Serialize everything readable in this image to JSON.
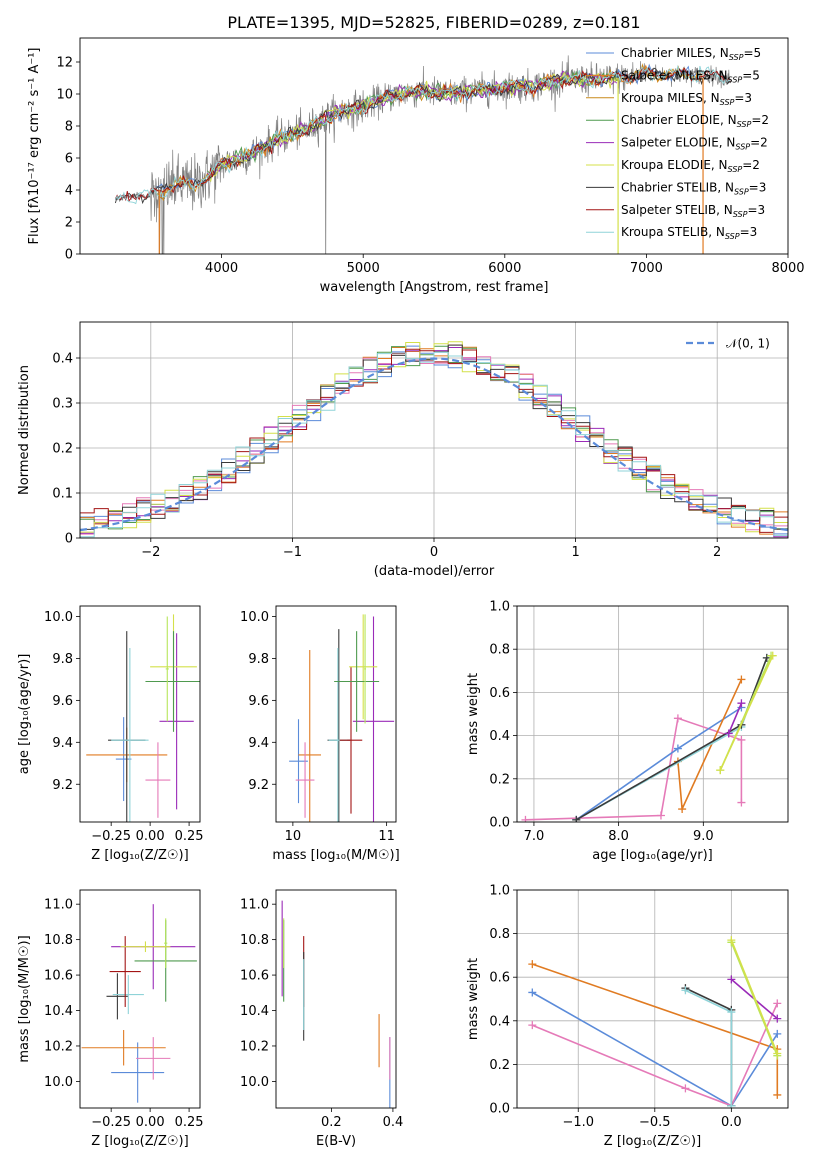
{
  "figure": {
    "title": "PLATE=1395, MJD=52825, FIBERID=0289, z=0.181"
  },
  "colors": {
    "chabrier_miles": "#5b8bd9",
    "salpeter_miles": "#e07b22",
    "kroupa_miles": "#c98a1a",
    "chabrier_elodie": "#4f9a4f",
    "salpeter_elodie": "#9a2bb8",
    "kroupa_elodie": "#d4e04a",
    "chabrier_stelib": "#3a3a3a",
    "salpeter_stelib": "#a31515",
    "kroupa_stelib": "#8fd3d8",
    "pink": "#e57ab8",
    "lime": "#b7e65a",
    "data": "#808080",
    "normal": "#5b8bd9",
    "grid": "#b0b0b0"
  },
  "chart_data": [
    {
      "id": "spectrum",
      "type": "line",
      "xlabel": "wavelength [Angstrom, rest frame]",
      "ylabel": "Flux [fλ10⁻¹⁷ erg cm⁻² s⁻¹ A⁻¹]",
      "xlim": [
        3000,
        8000
      ],
      "ylim": [
        0,
        13.5
      ],
      "xticks": [
        4000,
        5000,
        6000,
        7000,
        8000
      ],
      "yticks": [
        0,
        2,
        4,
        6,
        8,
        10,
        12
      ],
      "legend_position": "top-right",
      "legend": [
        {
          "label": "Chabrier MILES, N",
          "sub": "SSP",
          "suffix": "=5",
          "color_key": "chabrier_miles"
        },
        {
          "label": "Salpeter MILES, N",
          "sub": "SSP",
          "suffix": "=5",
          "color_key": "salpeter_miles"
        },
        {
          "label": "Kroupa MILES, N",
          "sub": "SSP",
          "suffix": "=3",
          "color_key": "kroupa_miles"
        },
        {
          "label": "Chabrier ELODIE, N",
          "sub": "SSP",
          "suffix": "=2",
          "color_key": "chabrier_elodie"
        },
        {
          "label": "Salpeter ELODIE, N",
          "sub": "SSP",
          "suffix": "=2",
          "color_key": "salpeter_elodie"
        },
        {
          "label": "Kroupa ELODIE, N",
          "sub": "SSP",
          "suffix": "=2",
          "color_key": "kroupa_elodie"
        },
        {
          "label": "Chabrier STELIB, N",
          "sub": "SSP",
          "suffix": "=3",
          "color_key": "chabrier_stelib"
        },
        {
          "label": "Salpeter STELIB, N",
          "sub": "SSP",
          "suffix": "=3",
          "color_key": "salpeter_stelib"
        },
        {
          "label": "Kroupa STELIB, N",
          "sub": "SSP",
          "suffix": "=3",
          "color_key": "kroupa_stelib"
        }
      ],
      "continuum": {
        "wavelength": [
          3250,
          3400,
          3500,
          3600,
          3700,
          3800,
          3900,
          4000,
          4200,
          4400,
          4600,
          4800,
          5000,
          5200,
          5400,
          5600,
          5800,
          6000,
          6200,
          6400,
          6600,
          6800,
          7000,
          7200,
          7400,
          7600
        ],
        "flux": [
          3.4,
          3.7,
          3.6,
          4.1,
          4.4,
          4.3,
          4.8,
          5.6,
          6.2,
          7.2,
          7.8,
          8.8,
          9.2,
          9.9,
          10.2,
          10.0,
          10.2,
          10.4,
          10.5,
          10.9,
          10.9,
          11.0,
          11.3,
          11.2,
          11.2,
          11.0
        ]
      }
    },
    {
      "id": "residuals",
      "type": "histogram",
      "xlabel": "(data-model)/error",
      "ylabel": "Normed distribution",
      "xlim": [
        -2.5,
        2.5
      ],
      "ylim": [
        0,
        0.48
      ],
      "xticks": [
        -2,
        -1,
        0,
        1,
        2
      ],
      "yticks": [
        0.0,
        0.1,
        0.2,
        0.3,
        0.4
      ],
      "legend_position": "top-right",
      "legend_label": "𝒩(0, 1)"
    },
    {
      "id": "age_vs_Z",
      "type": "errorbar",
      "xlabel": "Z [log₁₀(Z/Z☉)]",
      "ylabel": "age  [log₁₀(age/yr)]",
      "xlim": [
        -0.45,
        0.32
      ],
      "ylim": [
        9.02,
        10.05
      ],
      "xticks": [
        -0.25,
        0.0,
        0.25
      ],
      "yticks": [
        9.2,
        9.4,
        9.6,
        9.8,
        10.0
      ],
      "points": [
        {
          "x": -0.17,
          "xerr": 0.05,
          "y": 9.32,
          "yerr": 0.2,
          "color_key": "chabrier_miles"
        },
        {
          "x": -0.15,
          "xerr": 0.26,
          "y": 9.34,
          "yerr": 0.13,
          "color_key": "salpeter_miles"
        },
        {
          "x": 0.05,
          "xerr": 0.08,
          "y": 9.22,
          "yerr": 0.18,
          "color_key": "pink"
        },
        {
          "x": -0.15,
          "xerr": 0.12,
          "y": 9.41,
          "yerr": 0.52,
          "color_key": "chabrier_stelib"
        },
        {
          "x": -0.13,
          "xerr": 0.12,
          "y": 9.41,
          "yerr": 0.44,
          "color_key": "kroupa_stelib"
        },
        {
          "x": 0.17,
          "xerr": 0.11,
          "y": 9.5,
          "yerr": 0.42,
          "color_key": "salpeter_elodie"
        },
        {
          "x": 0.15,
          "xerr": 0.15,
          "y": 9.76,
          "yerr": 0.25,
          "color_key": "kroupa_elodie"
        },
        {
          "x": 0.15,
          "xerr": 0.18,
          "y": 9.69,
          "yerr": 0.24,
          "color_key": "chabrier_elodie"
        },
        {
          "x": 0.11,
          "xerr": 0.01,
          "y": 9.75,
          "yerr": 0.25,
          "color_key": "lime"
        }
      ]
    },
    {
      "id": "age_vs_mass",
      "type": "errorbar",
      "xlabel": "mass [log₁₀(M/M☉)]",
      "ylabel": "",
      "xlim": [
        9.82,
        11.1
      ],
      "ylim": [
        9.02,
        10.05
      ],
      "xticks": [
        10,
        11
      ],
      "yticks": [
        9.2,
        9.4,
        9.6,
        9.8,
        10.0
      ],
      "points": [
        {
          "x": 10.06,
          "xerr": 0.1,
          "y": 9.31,
          "yerr": 0.2,
          "color_key": "chabrier_miles"
        },
        {
          "x": 10.18,
          "xerr": 0.12,
          "y": 9.34,
          "yerr": 0.5,
          "color_key": "salpeter_miles"
        },
        {
          "x": 10.13,
          "xerr": 0.1,
          "y": 9.22,
          "yerr": 0.18,
          "color_key": "pink"
        },
        {
          "x": 10.49,
          "xerr": 0.12,
          "y": 9.41,
          "yerr": 0.53,
          "color_key": "chabrier_stelib"
        },
        {
          "x": 10.48,
          "xerr": 0.1,
          "y": 9.41,
          "yerr": 0.44,
          "color_key": "kroupa_stelib"
        },
        {
          "x": 10.62,
          "xerr": 0.12,
          "y": 9.41,
          "yerr": 0.35,
          "color_key": "salpeter_stelib"
        },
        {
          "x": 10.86,
          "xerr": 0.22,
          "y": 9.5,
          "yerr": 0.5,
          "color_key": "salpeter_elodie"
        },
        {
          "x": 10.75,
          "xerr": 0.15,
          "y": 9.76,
          "yerr": 0.25,
          "color_key": "kroupa_elodie"
        },
        {
          "x": 10.68,
          "xerr": 0.24,
          "y": 9.69,
          "yerr": 0.24,
          "color_key": "chabrier_elodie"
        },
        {
          "x": 10.77,
          "xerr": 0.01,
          "y": 9.75,
          "yerr": 0.26,
          "color_key": "lime"
        }
      ]
    },
    {
      "id": "weight_vs_age",
      "type": "line",
      "xlabel": "age  [log₁₀(age/yr)]",
      "ylabel": "mass weight",
      "xlim": [
        6.8,
        10.0
      ],
      "ylim": [
        0.0,
        1.0
      ],
      "xticks": [
        7,
        8,
        9
      ],
      "yticks": [
        0.0,
        0.2,
        0.4,
        0.6,
        0.8,
        1.0
      ],
      "series": [
        {
          "color_key": "pink",
          "points": [
            [
              6.9,
              0.01
            ],
            [
              8.5,
              0.03
            ],
            [
              8.7,
              0.48
            ],
            [
              9.45,
              0.38
            ],
            [
              9.45,
              0.09
            ]
          ]
        },
        {
          "color_key": "chabrier_miles",
          "points": [
            [
              7.5,
              0.01
            ],
            [
              8.7,
              0.34
            ],
            [
              9.45,
              0.53
            ]
          ]
        },
        {
          "color_key": "salpeter_miles",
          "points": [
            [
              8.7,
              0.28
            ],
            [
              8.75,
              0.06
            ],
            [
              9.45,
              0.66
            ]
          ]
        },
        {
          "color_key": "kroupa_stelib",
          "points": [
            [
              7.5,
              0.01
            ],
            [
              9.45,
              0.44
            ],
            [
              9.75,
              0.76
            ]
          ]
        },
        {
          "color_key": "chabrier_stelib",
          "points": [
            [
              7.5,
              0.01
            ],
            [
              9.45,
              0.45
            ],
            [
              9.75,
              0.76
            ]
          ]
        },
        {
          "color_key": "salpeter_elodie",
          "points": [
            [
              9.3,
              0.41
            ],
            [
              9.45,
              0.55
            ]
          ]
        },
        {
          "color_key": "lime",
          "points": [
            [
              9.2,
              0.24
            ],
            [
              9.8,
              0.77
            ]
          ]
        },
        {
          "color_key": "kroupa_elodie",
          "points": [
            [
              9.2,
              0.24
            ],
            [
              9.82,
              0.77
            ]
          ]
        }
      ]
    },
    {
      "id": "mass_vs_Z",
      "type": "errorbar",
      "xlabel": "Z [log₁₀(Z/Z☉)]",
      "ylabel": "mass [log₁₀(M/M☉)]",
      "xlim": [
        -0.45,
        0.32
      ],
      "ylim": [
        9.85,
        11.08
      ],
      "xticks": [
        -0.25,
        0.0,
        0.25
      ],
      "yticks": [
        10.0,
        10.2,
        10.4,
        10.6,
        10.8,
        11.0
      ],
      "points": [
        {
          "x": -0.08,
          "xerr": 0.17,
          "y": 10.05,
          "yerr": 0.17,
          "color_key": "chabrier_miles"
        },
        {
          "x": -0.17,
          "xerr": 0.27,
          "y": 10.19,
          "yerr": 0.1,
          "color_key": "salpeter_miles"
        },
        {
          "x": 0.02,
          "xerr": 0.11,
          "y": 10.13,
          "yerr": 0.12,
          "color_key": "pink"
        },
        {
          "x": -0.21,
          "xerr": 0.07,
          "y": 10.48,
          "yerr": 0.13,
          "color_key": "chabrier_stelib"
        },
        {
          "x": -0.14,
          "xerr": 0.1,
          "y": 10.49,
          "yerr": 0.11,
          "color_key": "kroupa_stelib"
        },
        {
          "x": -0.16,
          "xerr": 0.1,
          "y": 10.62,
          "yerr": 0.2,
          "color_key": "salpeter_stelib"
        },
        {
          "x": 0.02,
          "xerr": 0.27,
          "y": 10.76,
          "yerr": 0.24,
          "color_key": "salpeter_elodie"
        },
        {
          "x": 0.1,
          "xerr": 0.2,
          "y": 10.68,
          "yerr": 0.23,
          "color_key": "chabrier_elodie"
        },
        {
          "x": 0.1,
          "xerr": 0.01,
          "y": 10.78,
          "yerr": 0.14,
          "color_key": "lime"
        },
        {
          "x": -0.03,
          "xerr": 0.16,
          "y": 10.76,
          "yerr": 0.03,
          "color_key": "kroupa_elodie"
        }
      ]
    },
    {
      "id": "mass_vs_ebv",
      "type": "errorbar",
      "xlabel": "E(B-V)",
      "ylabel": "",
      "xlim": [
        0.02,
        0.41
      ],
      "ylim": [
        9.85,
        11.08
      ],
      "xticks": [
        0.2,
        0.4
      ],
      "yticks": [
        10.0,
        10.2,
        10.4,
        10.6,
        10.8,
        11.0
      ],
      "points": [
        {
          "x": 0.04,
          "xerr": 0.0,
          "y": 10.75,
          "yerr": 0.27,
          "color_key": "salpeter_elodie"
        },
        {
          "x": 0.045,
          "xerr": 0.0,
          "y": 10.68,
          "yerr": 0.23,
          "color_key": "chabrier_elodie"
        },
        {
          "x": 0.045,
          "xerr": 0.0,
          "y": 10.78,
          "yerr": 0.14,
          "color_key": "lime"
        },
        {
          "x": 0.11,
          "xerr": 0.0,
          "y": 10.62,
          "yerr": 0.2,
          "color_key": "salpeter_stelib"
        },
        {
          "x": 0.11,
          "xerr": 0.0,
          "y": 10.48,
          "yerr": 0.25,
          "color_key": "chabrier_stelib"
        },
        {
          "x": 0.11,
          "xerr": 0.0,
          "y": 10.49,
          "yerr": 0.2,
          "color_key": "kroupa_stelib"
        },
        {
          "x": 0.355,
          "xerr": 0.0,
          "y": 10.23,
          "yerr": 0.15,
          "color_key": "salpeter_miles"
        },
        {
          "x": 0.39,
          "xerr": 0.0,
          "y": 10.05,
          "yerr": 0.2,
          "color_key": "chabrier_miles"
        },
        {
          "x": 0.39,
          "xerr": 0.0,
          "y": 10.13,
          "yerr": 0.12,
          "color_key": "pink"
        }
      ]
    },
    {
      "id": "weight_vs_Z",
      "type": "line",
      "xlabel": "Z [log₁₀(Z/Z☉)]",
      "ylabel": "mass weight",
      "xlim": [
        -1.4,
        0.37
      ],
      "ylim": [
        0.0,
        1.0
      ],
      "xticks": [
        -1.0,
        -0.5,
        0.0
      ],
      "yticks": [
        0.0,
        0.2,
        0.4,
        0.6,
        0.8,
        1.0
      ],
      "series": [
        {
          "color_key": "salpeter_miles",
          "points": [
            [
              -1.3,
              0.66
            ],
            [
              0.3,
              0.27
            ],
            [
              0.3,
              0.06
            ]
          ]
        },
        {
          "color_key": "chabrier_miles",
          "points": [
            [
              -1.3,
              0.53
            ],
            [
              0.0,
              0.01
            ],
            [
              0.3,
              0.34
            ]
          ]
        },
        {
          "color_key": "pink",
          "points": [
            [
              -1.3,
              0.38
            ],
            [
              -0.3,
              0.09
            ],
            [
              0.0,
              0.01
            ],
            [
              0.3,
              0.48
            ]
          ]
        },
        {
          "color_key": "chabrier_stelib",
          "points": [
            [
              -0.3,
              0.55
            ],
            [
              0.0,
              0.45
            ],
            [
              0.0,
              0.01
            ]
          ]
        },
        {
          "color_key": "kroupa_stelib",
          "points": [
            [
              -0.3,
              0.54
            ],
            [
              0.0,
              0.44
            ],
            [
              0.0,
              0.01
            ]
          ]
        },
        {
          "color_key": "salpeter_elodie",
          "points": [
            [
              0.0,
              0.59
            ],
            [
              0.3,
              0.41
            ]
          ]
        },
        {
          "color_key": "lime",
          "points": [
            [
              0.0,
              0.76
            ],
            [
              0.3,
              0.24
            ]
          ]
        },
        {
          "color_key": "kroupa_elodie",
          "points": [
            [
              0.0,
              0.77
            ],
            [
              0.3,
              0.25
            ]
          ]
        }
      ]
    }
  ]
}
